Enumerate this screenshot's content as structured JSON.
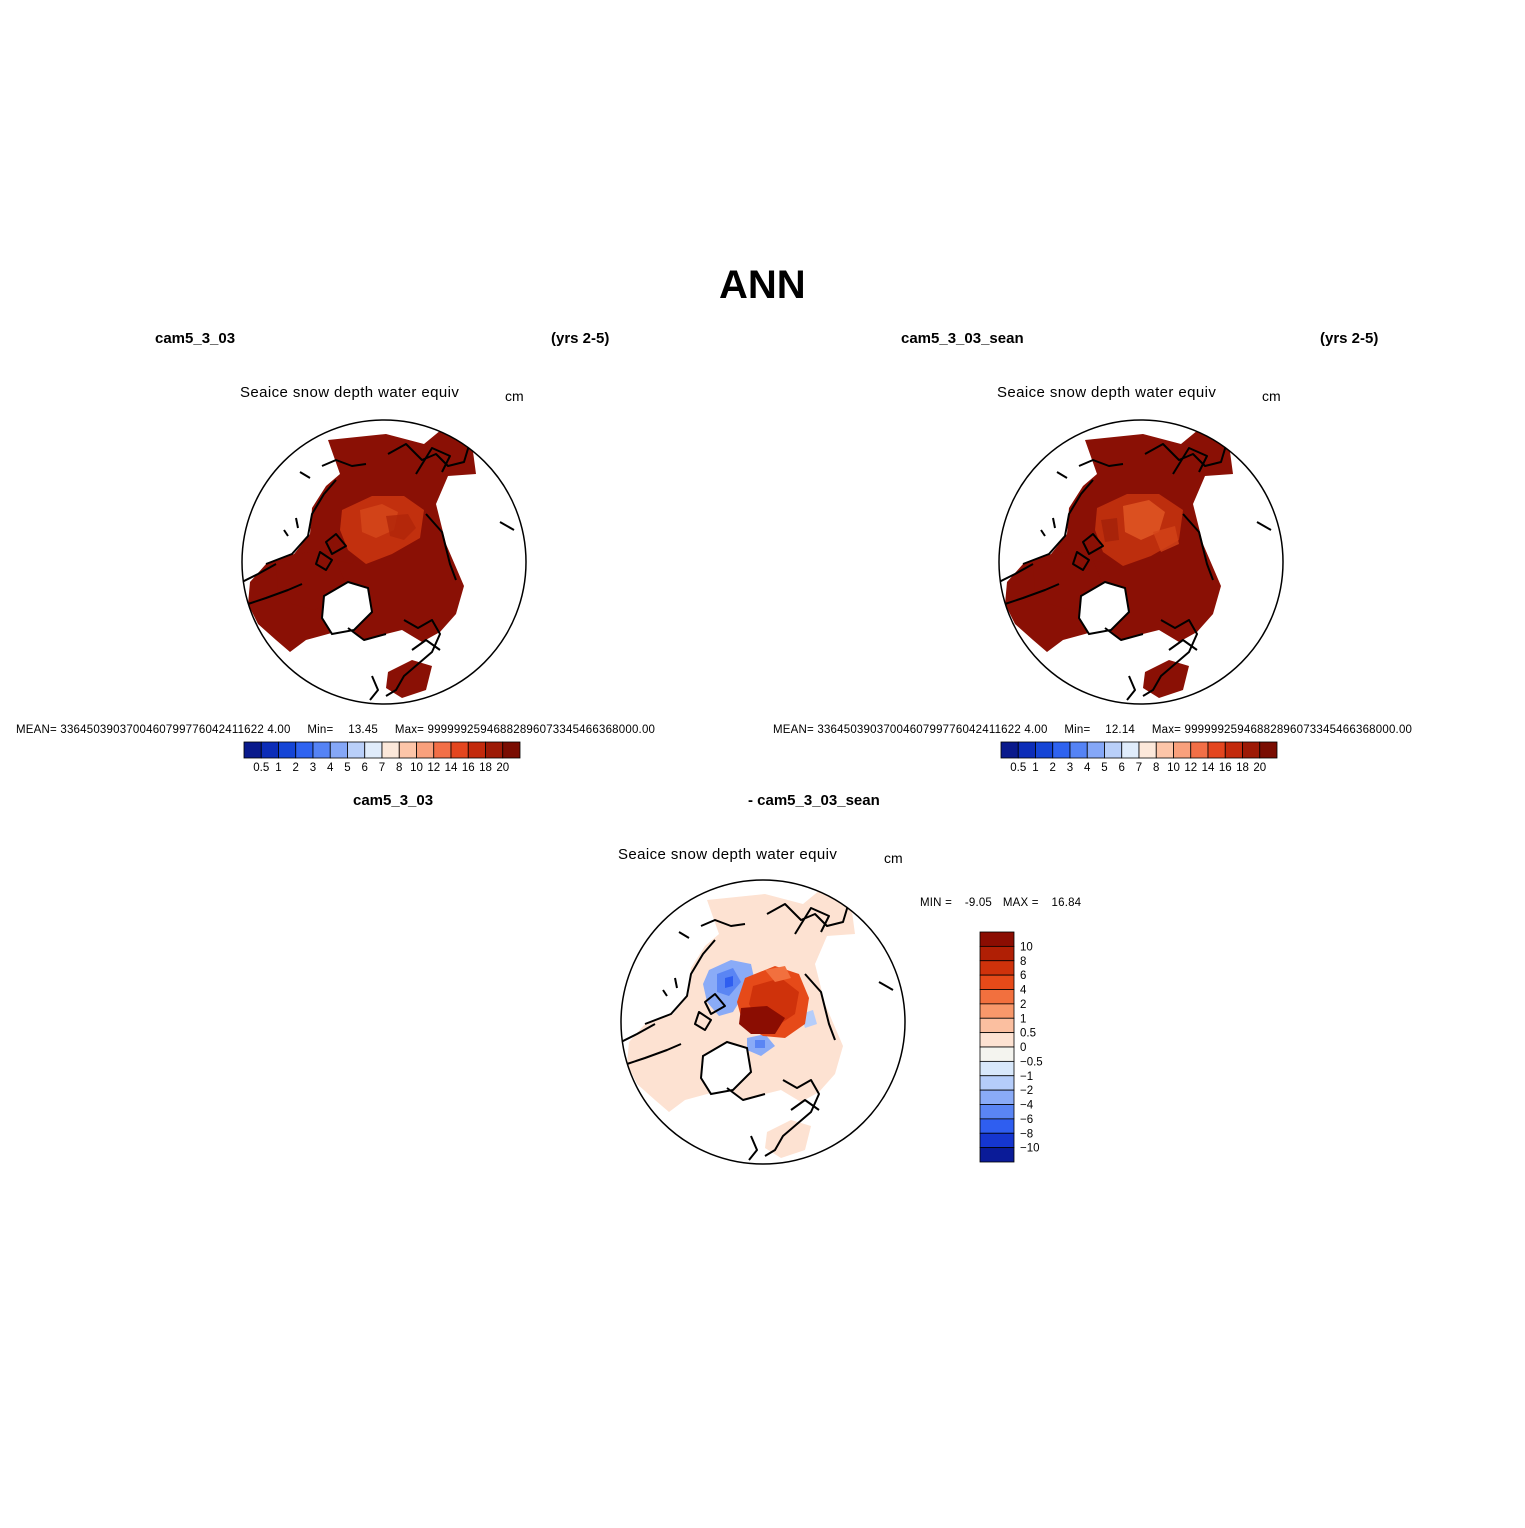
{
  "figure": {
    "title": "ANN"
  },
  "colors": {
    "coastline": "#000000",
    "map_border": "#000000",
    "land_fill": "#ffffff"
  },
  "chart_data": [
    {
      "type": "heatmap",
      "panel": "top-left",
      "case_label": "cam5_3_03",
      "years_label": "(yrs 2-5)",
      "title": "Seaice snow depth water equiv",
      "units": "cm",
      "projection": "north-polar-stereographic",
      "stats": {
        "mean_label": "MEAN=",
        "mean": "3364503903700460799776042411622 4.00",
        "min_label": "Min=",
        "min": "13.45",
        "max_label": "Max=",
        "max": "99999925946882896073345466368000.00"
      },
      "colorbar": {
        "orientation": "horizontal",
        "levels": [
          "0.5",
          "1",
          "2",
          "3",
          "4",
          "5",
          "6",
          "7",
          "8",
          "10",
          "12",
          "14",
          "16",
          "18",
          "20"
        ],
        "colors": [
          "#0a1a8c",
          "#0c2db8",
          "#1545d6",
          "#2f63f0",
          "#5583f5",
          "#85a7f7",
          "#b9cff9",
          "#e0ecfb",
          "#fce8da",
          "#fdc5a8",
          "#f9a07c",
          "#f26f47",
          "#e4461f",
          "#c32a0c",
          "#9d1a06",
          "#7a0d02"
        ]
      },
      "field_summary": "Values mostly at top of scale (>20 cm) over Arctic Ocean, Hudson Bay, Baffin Bay and coastal seas; slightly lower (14-18 cm) over central Arctic."
    },
    {
      "type": "heatmap",
      "panel": "top-right",
      "case_label": "cam5_3_03_sean",
      "years_label": "(yrs 2-5)",
      "title": "Seaice snow depth water equiv",
      "units": "cm",
      "projection": "north-polar-stereographic",
      "stats": {
        "mean_label": "MEAN=",
        "mean": "3364503903700460799776042411622 4.00",
        "min_label": "Min=",
        "min": "12.14",
        "max_label": "Max=",
        "max": "99999925946882896073345466368000.00"
      },
      "colorbar": {
        "orientation": "horizontal",
        "levels": [
          "0.5",
          "1",
          "2",
          "3",
          "4",
          "5",
          "6",
          "7",
          "8",
          "10",
          "12",
          "14",
          "16",
          "18",
          "20"
        ],
        "colors": [
          "#0a1a8c",
          "#0c2db8",
          "#1545d6",
          "#2f63f0",
          "#5583f5",
          "#85a7f7",
          "#b9cff9",
          "#e0ecfb",
          "#fce8da",
          "#fdc5a8",
          "#f9a07c",
          "#f26f47",
          "#e4461f",
          "#c32a0c",
          "#9d1a06",
          "#7a0d02"
        ]
      },
      "field_summary": "Same spatial pattern as top-left, with slightly more orange (14-18 cm) patches over central Arctic."
    },
    {
      "type": "heatmap",
      "panel": "bottom-difference",
      "case_label": "cam5_3_03",
      "case_label_2": "- cam5_3_03_sean",
      "title": "Seaice snow depth water equiv",
      "units": "cm",
      "projection": "north-polar-stereographic",
      "stats": {
        "min_label": "MIN =",
        "min": "-9.05",
        "max_label": "MAX =",
        "max": "16.84"
      },
      "colorbar": {
        "orientation": "vertical",
        "levels": [
          "10",
          "8",
          "6",
          "4",
          "2",
          "1",
          "0.5",
          "0",
          "-0.5",
          "-1",
          "-2",
          "-4",
          "-6",
          "-8",
          "-10"
        ],
        "level_display": [
          "10",
          "8",
          "6",
          "4",
          "2",
          "1",
          "0.5",
          "0",
          "−0.5",
          "−1",
          "−2",
          "−4",
          "−6",
          "−8",
          "−10"
        ],
        "colors": [
          "#8b0d02",
          "#b01f05",
          "#cf320b",
          "#e64a19",
          "#f2703e",
          "#f8986b",
          "#fbbfa0",
          "#fde2d2",
          "#f4f4ef",
          "#d8e8fb",
          "#b5cdfa",
          "#8aabf7",
          "#5a85f4",
          "#2f5ef0",
          "#1536d0",
          "#0a1b98"
        ]
      },
      "field_summary": "Near-zero (0-0.5 cm) over most ice; positive differences 4-10+ cm over central Arctic; negative -2 to -6 cm over Canadian Archipelago side and Siberian shelf."
    }
  ]
}
